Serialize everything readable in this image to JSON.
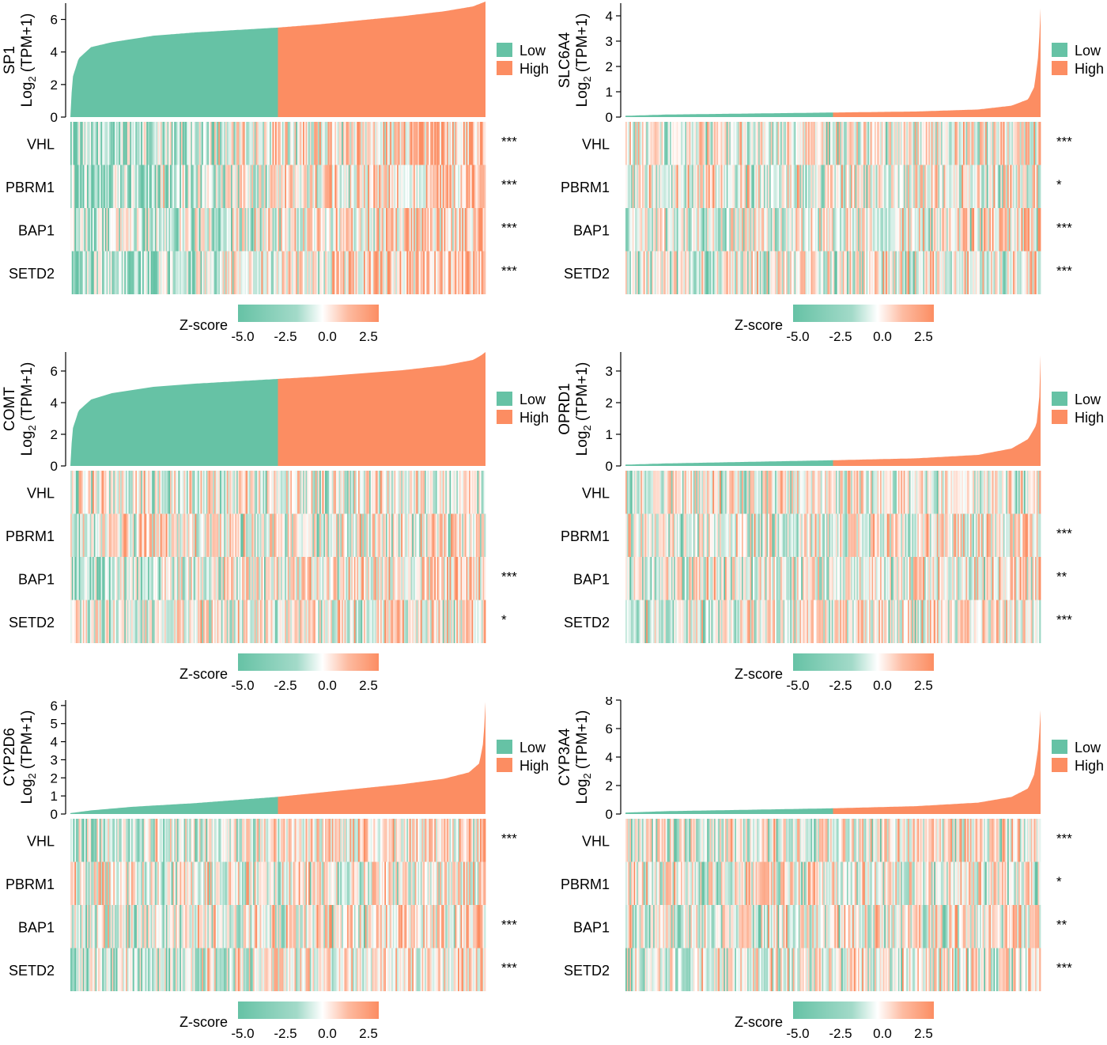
{
  "colors": {
    "low": "#66C2A5",
    "high": "#FC8D62",
    "mid": "#ffffff"
  },
  "legend": {
    "low_label": "Low",
    "high_label": "High"
  },
  "colorbar": {
    "label": "Z-score",
    "ticks": [
      "-5.0",
      "-2.5",
      "0.0",
      "2.5"
    ]
  },
  "y_axis_unit": "(TPM+1)",
  "y_axis_log": "Log",
  "y_axis_sub": "2",
  "chart_data": [
    {
      "type": "area",
      "gene": "SP1",
      "ylim": [
        0,
        7
      ],
      "yticks": [
        0,
        2,
        4,
        6
      ],
      "curve": [
        [
          0,
          0
        ],
        [
          0.005,
          2.4
        ],
        [
          0.02,
          3.6
        ],
        [
          0.05,
          4.3
        ],
        [
          0.1,
          4.6
        ],
        [
          0.2,
          5.0
        ],
        [
          0.3,
          5.2
        ],
        [
          0.4,
          5.35
        ],
        [
          0.5,
          5.5
        ],
        [
          0.6,
          5.7
        ],
        [
          0.7,
          5.95
        ],
        [
          0.8,
          6.2
        ],
        [
          0.9,
          6.5
        ],
        [
          0.97,
          6.8
        ],
        [
          0.99,
          7.0
        ],
        [
          1,
          7.1
        ]
      ],
      "rows": [
        "VHL",
        "PBRM1",
        "BAP1",
        "SETD2"
      ],
      "significance": [
        "***",
        "***",
        "***",
        "***"
      ],
      "heat_trend": [
        0.6,
        0.45,
        0.45,
        0.6
      ]
    },
    {
      "type": "area",
      "gene": "SLC6A4",
      "ylim": [
        0,
        4.5
      ],
      "yticks": [
        0,
        1,
        2,
        3,
        4
      ],
      "curve": [
        [
          0,
          0.05
        ],
        [
          0.1,
          0.1
        ],
        [
          0.3,
          0.14
        ],
        [
          0.5,
          0.18
        ],
        [
          0.7,
          0.22
        ],
        [
          0.85,
          0.3
        ],
        [
          0.93,
          0.45
        ],
        [
          0.97,
          0.7
        ],
        [
          0.985,
          1.2
        ],
        [
          0.995,
          2.5
        ],
        [
          1,
          4.3
        ]
      ],
      "rows": [
        "VHL",
        "PBRM1",
        "BAP1",
        "SETD2"
      ],
      "significance": [
        "***",
        "*",
        "***",
        "***"
      ],
      "heat_trend": [
        0.15,
        0.05,
        0.15,
        0.15
      ]
    },
    {
      "type": "area",
      "gene": "COMT",
      "ylim": [
        0,
        7.2
      ],
      "yticks": [
        0,
        2,
        4,
        6
      ],
      "curve": [
        [
          0,
          0
        ],
        [
          0.005,
          2.3
        ],
        [
          0.02,
          3.5
        ],
        [
          0.05,
          4.2
        ],
        [
          0.1,
          4.6
        ],
        [
          0.2,
          5.0
        ],
        [
          0.3,
          5.2
        ],
        [
          0.4,
          5.35
        ],
        [
          0.5,
          5.5
        ],
        [
          0.6,
          5.65
        ],
        [
          0.7,
          5.85
        ],
        [
          0.8,
          6.05
        ],
        [
          0.9,
          6.35
        ],
        [
          0.97,
          6.7
        ],
        [
          0.99,
          7.0
        ],
        [
          1,
          7.2
        ]
      ],
      "rows": [
        "VHL",
        "PBRM1",
        "BAP1",
        "SETD2"
      ],
      "significance": [
        "",
        "",
        "***",
        "*"
      ],
      "heat_trend": [
        0.0,
        0.0,
        0.35,
        0.15
      ]
    },
    {
      "type": "area",
      "gene": "OPRD1",
      "ylim": [
        0,
        3.6
      ],
      "yticks": [
        0,
        1,
        2,
        3
      ],
      "curve": [
        [
          0,
          0.04
        ],
        [
          0.1,
          0.08
        ],
        [
          0.3,
          0.13
        ],
        [
          0.5,
          0.18
        ],
        [
          0.7,
          0.24
        ],
        [
          0.85,
          0.35
        ],
        [
          0.93,
          0.55
        ],
        [
          0.97,
          0.85
        ],
        [
          0.99,
          1.3
        ],
        [
          0.997,
          2.2
        ],
        [
          1,
          3.5
        ]
      ],
      "rows": [
        "VHL",
        "PBRM1",
        "BAP1",
        "SETD2"
      ],
      "significance": [
        "",
        "***",
        "**",
        "***"
      ],
      "heat_trend": [
        0.0,
        0.15,
        0.12,
        0.15
      ]
    },
    {
      "type": "area",
      "gene": "CYP2D6",
      "ylim": [
        0,
        6.3
      ],
      "yticks": [
        0,
        1,
        2,
        3,
        4,
        5,
        6
      ],
      "curve": [
        [
          0,
          0.05
        ],
        [
          0.05,
          0.2
        ],
        [
          0.15,
          0.4
        ],
        [
          0.3,
          0.6
        ],
        [
          0.5,
          0.95
        ],
        [
          0.65,
          1.3
        ],
        [
          0.8,
          1.65
        ],
        [
          0.9,
          1.95
        ],
        [
          0.96,
          2.3
        ],
        [
          0.985,
          2.8
        ],
        [
          0.995,
          4.0
        ],
        [
          1,
          6.2
        ]
      ],
      "rows": [
        "VHL",
        "PBRM1",
        "BAP1",
        "SETD2"
      ],
      "significance": [
        "***",
        "",
        "***",
        "***"
      ],
      "heat_trend": [
        0.3,
        0.0,
        0.3,
        0.3
      ]
    },
    {
      "type": "area",
      "gene": "CYP3A4",
      "ylim": [
        0,
        8
      ],
      "yticks": [
        0,
        2,
        4,
        6,
        8
      ],
      "curve": [
        [
          0,
          0.1
        ],
        [
          0.1,
          0.2
        ],
        [
          0.3,
          0.3
        ],
        [
          0.5,
          0.4
        ],
        [
          0.7,
          0.55
        ],
        [
          0.85,
          0.8
        ],
        [
          0.93,
          1.2
        ],
        [
          0.97,
          1.8
        ],
        [
          0.985,
          2.8
        ],
        [
          0.995,
          4.8
        ],
        [
          1,
          7.3
        ]
      ],
      "rows": [
        "VHL",
        "PBRM1",
        "BAP1",
        "SETD2"
      ],
      "significance": [
        "***",
        "*",
        "**",
        "***"
      ],
      "heat_trend": [
        0.15,
        0.05,
        0.12,
        0.15
      ]
    }
  ]
}
